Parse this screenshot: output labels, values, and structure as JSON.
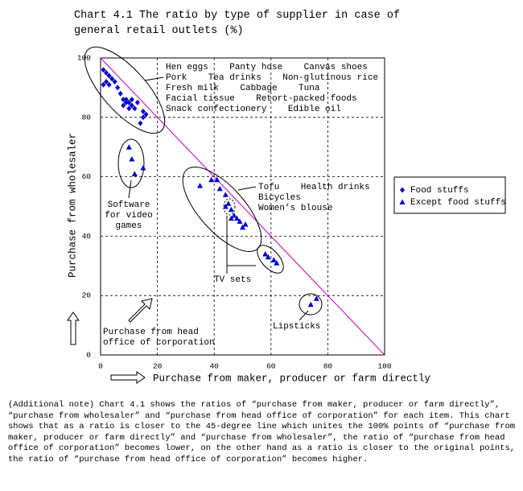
{
  "chart_data": {
    "type": "scatter",
    "title": "Chart 4.1 The ratio by type of supplier in case of general retail outlets (%)",
    "x_label": "Purchase from maker, producer or farm directly",
    "y_label": "Purchase from wholesaler",
    "xlim": [
      0,
      100
    ],
    "xticks": [
      0,
      20,
      40,
      60,
      80,
      100
    ],
    "ylim": [
      0,
      100
    ],
    "yticks": [
      0,
      20,
      40,
      60,
      80,
      100
    ],
    "grid": true,
    "legend": "right",
    "series": [
      {
        "name": "Food stuffs",
        "color": "#0000cc",
        "marker": "diamond",
        "x": [
          1,
          2,
          3,
          2,
          4,
          1,
          3,
          5,
          6,
          7,
          8,
          9,
          8,
          10,
          11,
          12,
          10,
          13,
          15,
          16,
          15,
          14,
          9,
          11
        ],
        "values": [
          96,
          95,
          94,
          92,
          93,
          91,
          91,
          92,
          90,
          88,
          86,
          85,
          84,
          85,
          84,
          83,
          83,
          85,
          82,
          81,
          80,
          78,
          86,
          86
        ]
      },
      {
        "name": "Except food stuffs",
        "color": "#0000cc",
        "marker": "triangle",
        "x": [
          10,
          11,
          12,
          15,
          35,
          39,
          41,
          42,
          44,
          45,
          46,
          47,
          46,
          48,
          49,
          50,
          51,
          44,
          58,
          59,
          61,
          62,
          74,
          76
        ],
        "values": [
          70,
          66,
          61,
          63,
          57,
          59,
          59,
          56,
          54,
          51,
          49,
          47,
          46,
          46,
          45,
          43,
          44,
          50,
          34,
          33,
          32,
          31,
          17,
          19
        ]
      }
    ],
    "annotations": [
      {
        "lines": [
          "Hen eggs    Panty hose    Canvas shoes",
          "Pork    Tea drinks    Non-glutinous rice",
          "Fresh milk    Cabbage    Tuna",
          "Facial tissue    Retort-packed foods",
          "Snack confectionery    Edible oil"
        ]
      },
      {
        "lines": [
          "Software",
          "for video",
          "games"
        ]
      },
      {
        "lines": [
          "Tofu    Health drinks",
          "Bicycles",
          "Women’s blouse"
        ]
      },
      {
        "lines": [
          "TV sets"
        ]
      },
      {
        "lines": [
          "Lipsticks"
        ]
      },
      {
        "lines": [
          "Purchase from head",
          "office of corporation"
        ]
      }
    ],
    "note": "(Additional note) Chart 4.1 shows the ratios of “purchase from maker, producer or farm directly”, “purchase from wholesaler” and “purchase from head office of corporation” for each item. This chart shows that as a ratio is closer to the 45-degree line which unites the 100% points of “purchase from maker, producer or farm directly” and “purchase from wholesaler”, the ratio of “purchase from head office of corporation” becomes lower, on the other hand as a ratio is closer to the original points, the ratio of “purchase from head office of corporation” becomes higher."
  }
}
